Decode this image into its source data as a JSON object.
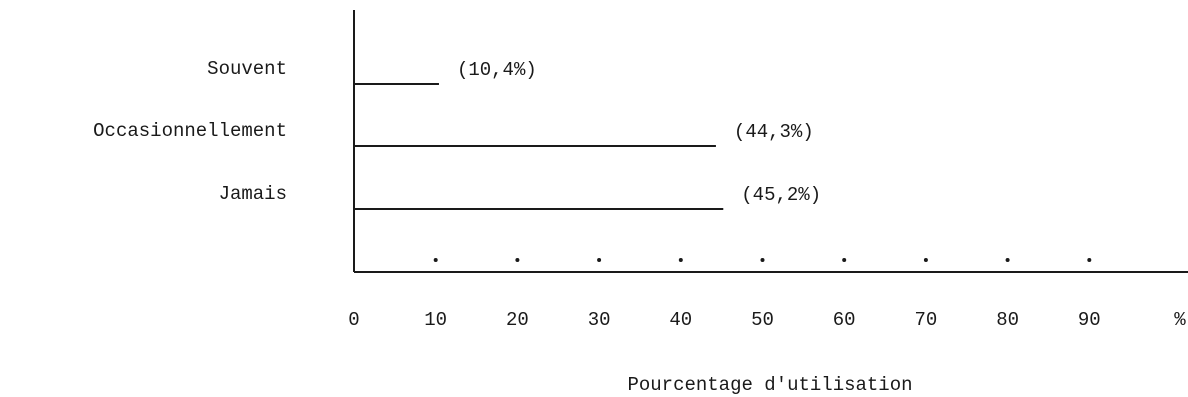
{
  "chart_data": {
    "type": "bar",
    "orientation": "horizontal",
    "categories": [
      "Souvent",
      "Occasionnellement",
      "Jamais"
    ],
    "values": [
      10.4,
      44.3,
      45.2
    ],
    "value_labels": [
      "(10,4%)",
      "(44,3%)",
      "(45,2%)"
    ],
    "xlabel": "Pourcentage d'utilisation",
    "x_unit_label": "%",
    "xlim": [
      0,
      100
    ],
    "x_ticks": [
      0,
      10,
      20,
      30,
      40,
      50,
      60,
      70,
      80,
      90
    ],
    "grid": false
  },
  "colors": {
    "ink": "#1a1a1a",
    "background": "#ffffff"
  }
}
